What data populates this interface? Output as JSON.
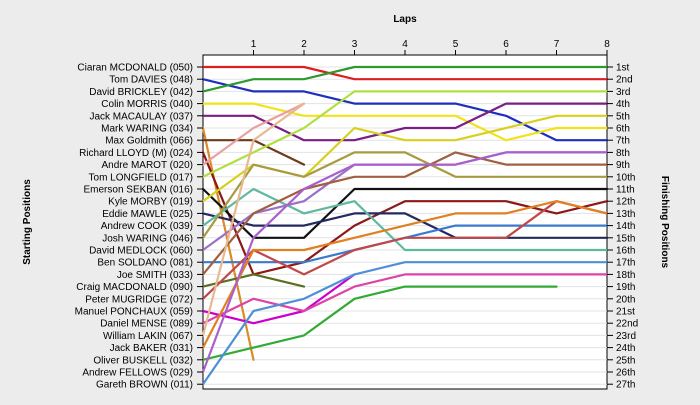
{
  "chart_data": {
    "type": "line",
    "title": "Laps",
    "xlabel": "Laps",
    "ylabel_left": "Starting Positions",
    "ylabel_right": "Finishing Positions",
    "x": [
      0,
      1,
      2,
      3,
      4,
      5,
      6,
      7,
      8
    ],
    "x_ticks": [
      "1",
      "2",
      "3",
      "4",
      "5",
      "6",
      "7",
      "8"
    ],
    "drivers": [
      "Ciaran MCDONALD (050)",
      "Tom DAVIES (048)",
      "David BRICKLEY (042)",
      "Colin MORRIS (040)",
      "Jack MACAULAY (037)",
      "Mark WARING (034)",
      "Max Goldmith (066)",
      "Richard LLOYD (M) (024)",
      "Andre MAROT (020)",
      "Tom LONGFIELD (017)",
      "Emerson SEKBAN (016)",
      "Kyle MORBY (019)",
      "Eddie MAWLE (025)",
      "Andrew COOK (039)",
      "Josh WARING (046)",
      "David MEDLOCK (060)",
      "Ben SOLDANO (081)",
      "Joe SMITH (033)",
      "Craig MACDONALD (090)",
      "Peter MUGRIDGE (072)",
      "Manuel PONCHAUX (059)",
      "Daniel MENSE (089)",
      "William LAKIN (067)",
      "Jack BAKER (031)",
      "Oliver BUSKELL (032)",
      "Andrew FELLOWS (029)",
      "Gareth BROWN (011)"
    ],
    "finishing_labels": [
      "1st",
      "2nd",
      "3rd",
      "4th",
      "5th",
      "6th",
      "7th",
      "8th",
      "9th",
      "10th",
      "11th",
      "12th",
      "13th",
      "14th",
      "15th",
      "16th",
      "17th",
      "18th",
      "19th",
      "20th",
      "21st",
      "22nd",
      "23rd",
      "24th",
      "25th",
      "26th",
      "27th"
    ],
    "series": [
      {
        "color": "#dd1f1f",
        "values": [
          1,
          1,
          1,
          2,
          2,
          2,
          2,
          2,
          2
        ]
      },
      {
        "color": "#1d2fbf",
        "values": [
          2,
          3,
          3,
          4,
          4,
          4,
          5,
          7,
          7
        ]
      },
      {
        "color": "#2e9a2e",
        "values": [
          3,
          2,
          2,
          1,
          1,
          1,
          1,
          1,
          1
        ]
      },
      {
        "color": "#f2e21a",
        "values": [
          4,
          4,
          5,
          5,
          5,
          5,
          7,
          6,
          6
        ]
      },
      {
        "color": "#7a1f82",
        "values": [
          5,
          5,
          7,
          7,
          6,
          6,
          4,
          4,
          4
        ]
      },
      {
        "color": "#d98a2a",
        "values": [
          6,
          25,
          null,
          null,
          null,
          null,
          null,
          null,
          null
        ]
      },
      {
        "color": "#6e3a1a",
        "values": [
          7,
          7,
          9,
          null,
          null,
          null,
          null,
          null,
          null
        ]
      },
      {
        "color": "#8c1818",
        "values": [
          8,
          18,
          17,
          14,
          12,
          12,
          12,
          13,
          12
        ]
      },
      {
        "color": "#e8a0a0",
        "values": [
          9,
          6,
          4,
          null,
          null,
          null,
          null,
          null,
          null
        ]
      },
      {
        "color": "#b0e040",
        "values": [
          10,
          8,
          6,
          3,
          3,
          3,
          3,
          3,
          3
        ]
      },
      {
        "color": "#111111",
        "values": [
          11,
          15,
          15,
          11,
          11,
          11,
          11,
          11,
          11
        ]
      },
      {
        "color": "#d8d020",
        "values": [
          12,
          9,
          10,
          6,
          7,
          7,
          6,
          5,
          5
        ]
      },
      {
        "color": "#222a60",
        "values": [
          13,
          14,
          14,
          13,
          13,
          15,
          15,
          15,
          15
        ]
      },
      {
        "color": "#5fb8a0",
        "values": [
          14,
          11,
          13,
          12,
          16,
          16,
          16,
          16,
          16
        ]
      },
      {
        "color": "#a89a40",
        "values": [
          15,
          9,
          10,
          8,
          8,
          10,
          10,
          10,
          10
        ]
      },
      {
        "color": "#9a70c8",
        "values": [
          16,
          13,
          12,
          9,
          9,
          9,
          8,
          8,
          8
        ]
      },
      {
        "color": "#3a7acc",
        "values": [
          17,
          17,
          17,
          16,
          15,
          14,
          14,
          14,
          14
        ]
      },
      {
        "color": "#a06040",
        "values": [
          18,
          13,
          11,
          10,
          10,
          8,
          9,
          9,
          9
        ]
      },
      {
        "color": "#5a7020",
        "values": [
          19,
          18,
          19,
          null,
          null,
          null,
          null,
          null,
          null
        ]
      },
      {
        "color": "#c04848",
        "values": [
          20,
          16,
          18,
          16,
          15,
          15,
          15,
          12,
          13
        ]
      },
      {
        "color": "#cc00cc",
        "values": [
          21,
          22,
          21,
          18,
          null,
          null,
          null,
          null,
          null
        ]
      },
      {
        "color": "#dd44aa",
        "values": [
          22,
          20,
          21,
          19,
          18,
          18,
          18,
          18,
          18
        ]
      },
      {
        "color": "#e8b890",
        "values": [
          23,
          7,
          4,
          null,
          null,
          null,
          null,
          null,
          null
        ]
      },
      {
        "color": "#e08020",
        "values": [
          24,
          16,
          16,
          15,
          14,
          13,
          13,
          12,
          13
        ]
      },
      {
        "color": "#33aa33",
        "values": [
          25,
          24,
          23,
          20,
          19,
          19,
          19,
          19,
          null
        ]
      },
      {
        "color": "#aa60cc",
        "values": [
          26,
          15,
          11,
          9,
          9,
          9,
          8,
          8,
          8
        ]
      },
      {
        "color": "#4d90d8",
        "values": [
          27,
          21,
          20,
          18,
          17,
          17,
          17,
          17,
          17
        ]
      }
    ]
  }
}
